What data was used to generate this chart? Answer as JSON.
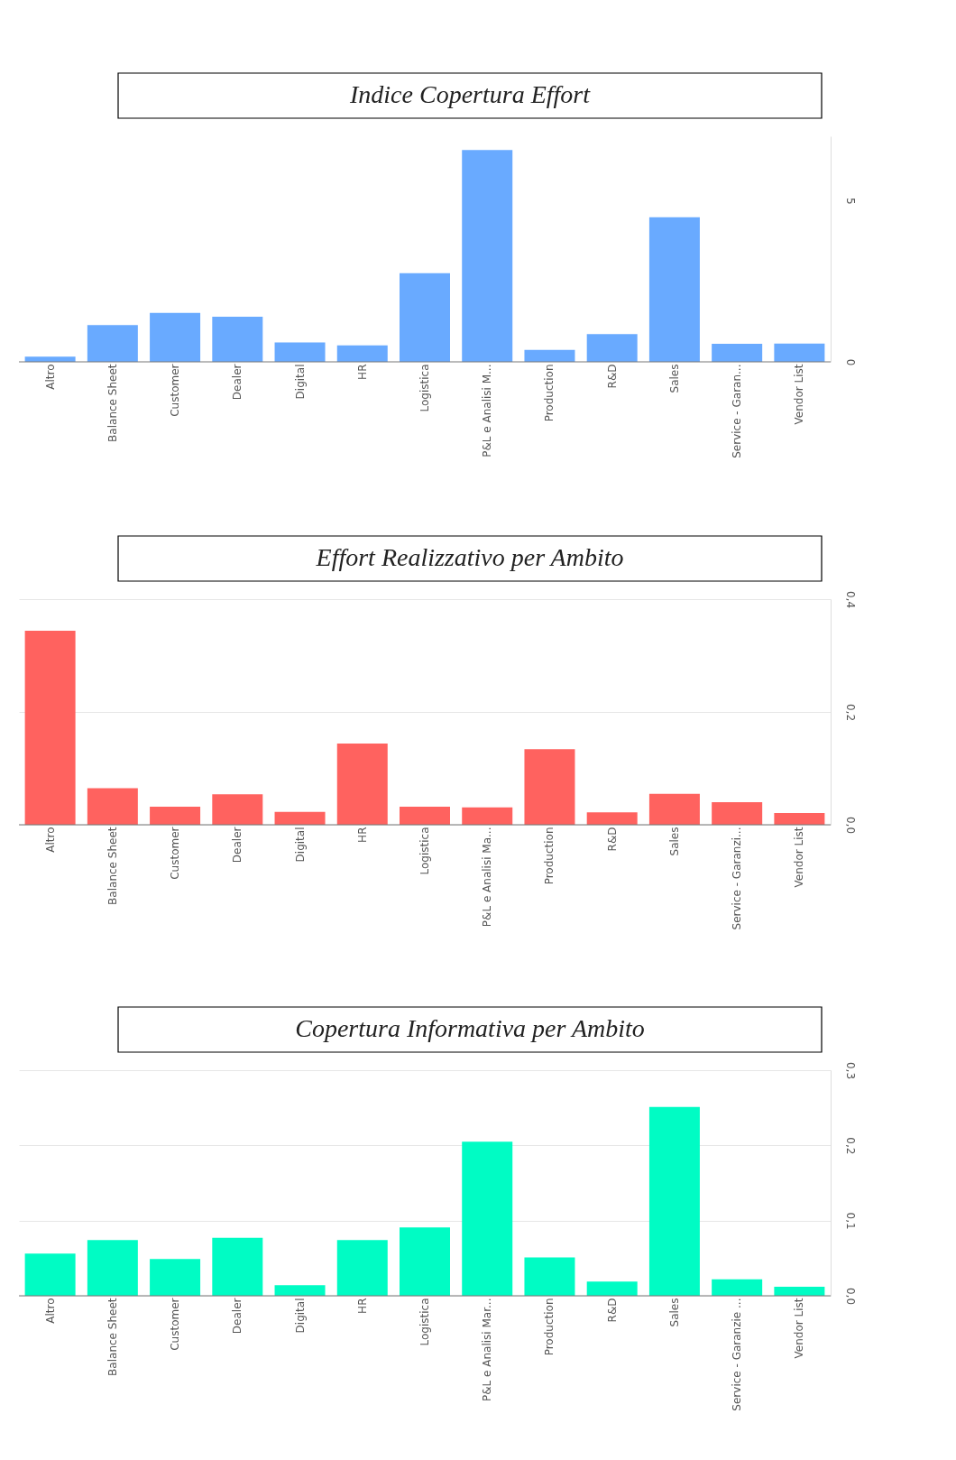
{
  "chart_data": [
    {
      "type": "bar",
      "title": "Indice Copertura Effort",
      "categories": [
        "Altro",
        "Balance Sheet",
        "Customer",
        "Dealer",
        "Digital",
        "HR",
        "Logistica",
        "P&L e Analisi M...",
        "Production",
        "R&D",
        "Sales",
        "Service - Garan...",
        "Vendor List"
      ],
      "values": [
        0.16,
        1.14,
        1.52,
        1.4,
        0.6,
        0.51,
        2.75,
        6.57,
        0.37,
        0.86,
        4.49,
        0.56,
        0.57
      ],
      "color": "#69aaff",
      "ylim": [
        0,
        7
      ],
      "yticks": [
        0,
        5
      ],
      "grid": false
    },
    {
      "type": "bar",
      "title": "Effort Realizzativo per Ambito",
      "categories": [
        "Altro",
        "Balance Sheet",
        "Customer",
        "Dealer",
        "Digital",
        "HR",
        "Logistica",
        "P&L e Analisi Ma...",
        "Production",
        "R&D",
        "Sales",
        "Service - Garanzi...",
        "Vendor List"
      ],
      "values": [
        0.344,
        0.065,
        0.032,
        0.054,
        0.023,
        0.144,
        0.032,
        0.031,
        0.134,
        0.022,
        0.055,
        0.04,
        0.021
      ],
      "color": "#ff625f",
      "ylim": [
        0,
        0.4
      ],
      "yticks": [
        {
          "value": 0,
          "label": "0,0"
        },
        {
          "value": 0.2,
          "label": "0,2"
        },
        {
          "value": 0.4,
          "label": "0,4"
        }
      ],
      "grid": "y"
    },
    {
      "type": "bar",
      "title": "Copertura Informativa per Ambito",
      "categories": [
        "Altro",
        "Balance Sheet",
        "Customer",
        "Dealer",
        "Digital",
        "HR",
        "Logistica",
        "P&L e Analisi Mar...",
        "Production",
        "R&D",
        "Sales",
        "Service - Garanzie ...",
        "Vendor List"
      ],
      "values": [
        0.056,
        0.074,
        0.049,
        0.077,
        0.014,
        0.074,
        0.091,
        0.205,
        0.051,
        0.019,
        0.251,
        0.022,
        0.012
      ],
      "color": "#00fcc4",
      "ylim": [
        0,
        0.3
      ],
      "yticks": [
        {
          "value": 0,
          "label": "0,0"
        },
        {
          "value": 0.1,
          "label": "0,1"
        },
        {
          "value": 0.2,
          "label": "0,2"
        },
        {
          "value": 0.3,
          "label": "0,3"
        }
      ],
      "grid": "y"
    }
  ]
}
